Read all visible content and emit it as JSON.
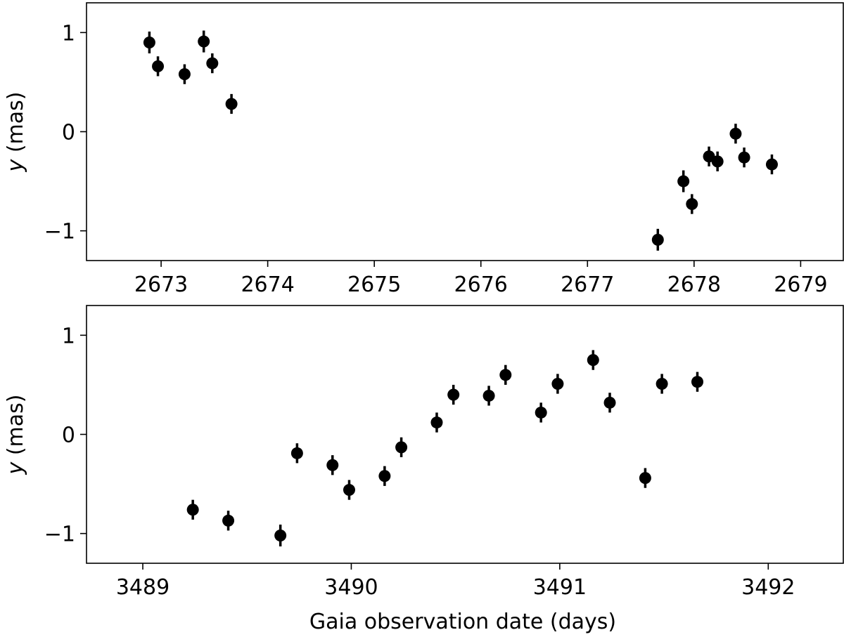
{
  "chart_data": [
    {
      "type": "scatter",
      "ylabel_var": "y",
      "ylabel_unit": " (mas)",
      "xlabel": "",
      "xlim": [
        2672.3,
        2679.4
      ],
      "ylim": [
        -1.3,
        1.3
      ],
      "xticks": [
        2673,
        2674,
        2675,
        2676,
        2677,
        2678,
        2679
      ],
      "yticks": [
        1,
        0,
        -1
      ],
      "ytick_labels": [
        "1",
        "0",
        "−1"
      ],
      "grid": false,
      "points": [
        {
          "x": 2672.89,
          "y": 0.9,
          "err": 0.11
        },
        {
          "x": 2672.97,
          "y": 0.66,
          "err": 0.1
        },
        {
          "x": 2673.22,
          "y": 0.58,
          "err": 0.1
        },
        {
          "x": 2673.4,
          "y": 0.91,
          "err": 0.11
        },
        {
          "x": 2673.48,
          "y": 0.69,
          "err": 0.1
        },
        {
          "x": 2673.66,
          "y": 0.28,
          "err": 0.1
        },
        {
          "x": 2677.66,
          "y": -1.09,
          "err": 0.11
        },
        {
          "x": 2677.9,
          "y": -0.5,
          "err": 0.11
        },
        {
          "x": 2677.98,
          "y": -0.73,
          "err": 0.1
        },
        {
          "x": 2678.14,
          "y": -0.25,
          "err": 0.1
        },
        {
          "x": 2678.22,
          "y": -0.3,
          "err": 0.1
        },
        {
          "x": 2678.39,
          "y": -0.02,
          "err": 0.1
        },
        {
          "x": 2678.47,
          "y": -0.26,
          "err": 0.1
        },
        {
          "x": 2678.73,
          "y": -0.33,
          "err": 0.1
        }
      ]
    },
    {
      "type": "scatter",
      "ylabel_var": "y",
      "ylabel_unit": " (mas)",
      "xlabel": "Gaia observation date (days)",
      "xlim": [
        3488.73,
        3492.36
      ],
      "ylim": [
        -1.3,
        1.3
      ],
      "xticks": [
        3489,
        3490,
        3491,
        3492
      ],
      "yticks": [
        1,
        0,
        -1
      ],
      "ytick_labels": [
        "1",
        "0",
        "−1"
      ],
      "grid": false,
      "points": [
        {
          "x": 3489.24,
          "y": -0.76,
          "err": 0.1
        },
        {
          "x": 3489.41,
          "y": -0.87,
          "err": 0.1
        },
        {
          "x": 3489.66,
          "y": -1.02,
          "err": 0.11
        },
        {
          "x": 3489.74,
          "y": -0.19,
          "err": 0.1
        },
        {
          "x": 3489.91,
          "y": -0.31,
          "err": 0.1
        },
        {
          "x": 3489.99,
          "y": -0.56,
          "err": 0.1
        },
        {
          "x": 3490.16,
          "y": -0.42,
          "err": 0.1
        },
        {
          "x": 3490.24,
          "y": -0.13,
          "err": 0.1
        },
        {
          "x": 3490.41,
          "y": 0.12,
          "err": 0.1
        },
        {
          "x": 3490.49,
          "y": 0.4,
          "err": 0.1
        },
        {
          "x": 3490.66,
          "y": 0.39,
          "err": 0.1
        },
        {
          "x": 3490.74,
          "y": 0.6,
          "err": 0.1
        },
        {
          "x": 3490.91,
          "y": 0.22,
          "err": 0.1
        },
        {
          "x": 3490.99,
          "y": 0.51,
          "err": 0.1
        },
        {
          "x": 3491.16,
          "y": 0.75,
          "err": 0.1
        },
        {
          "x": 3491.24,
          "y": 0.32,
          "err": 0.1
        },
        {
          "x": 3491.41,
          "y": -0.44,
          "err": 0.1
        },
        {
          "x": 3491.49,
          "y": 0.51,
          "err": 0.1
        },
        {
          "x": 3491.66,
          "y": 0.53,
          "err": 0.1
        }
      ]
    }
  ]
}
